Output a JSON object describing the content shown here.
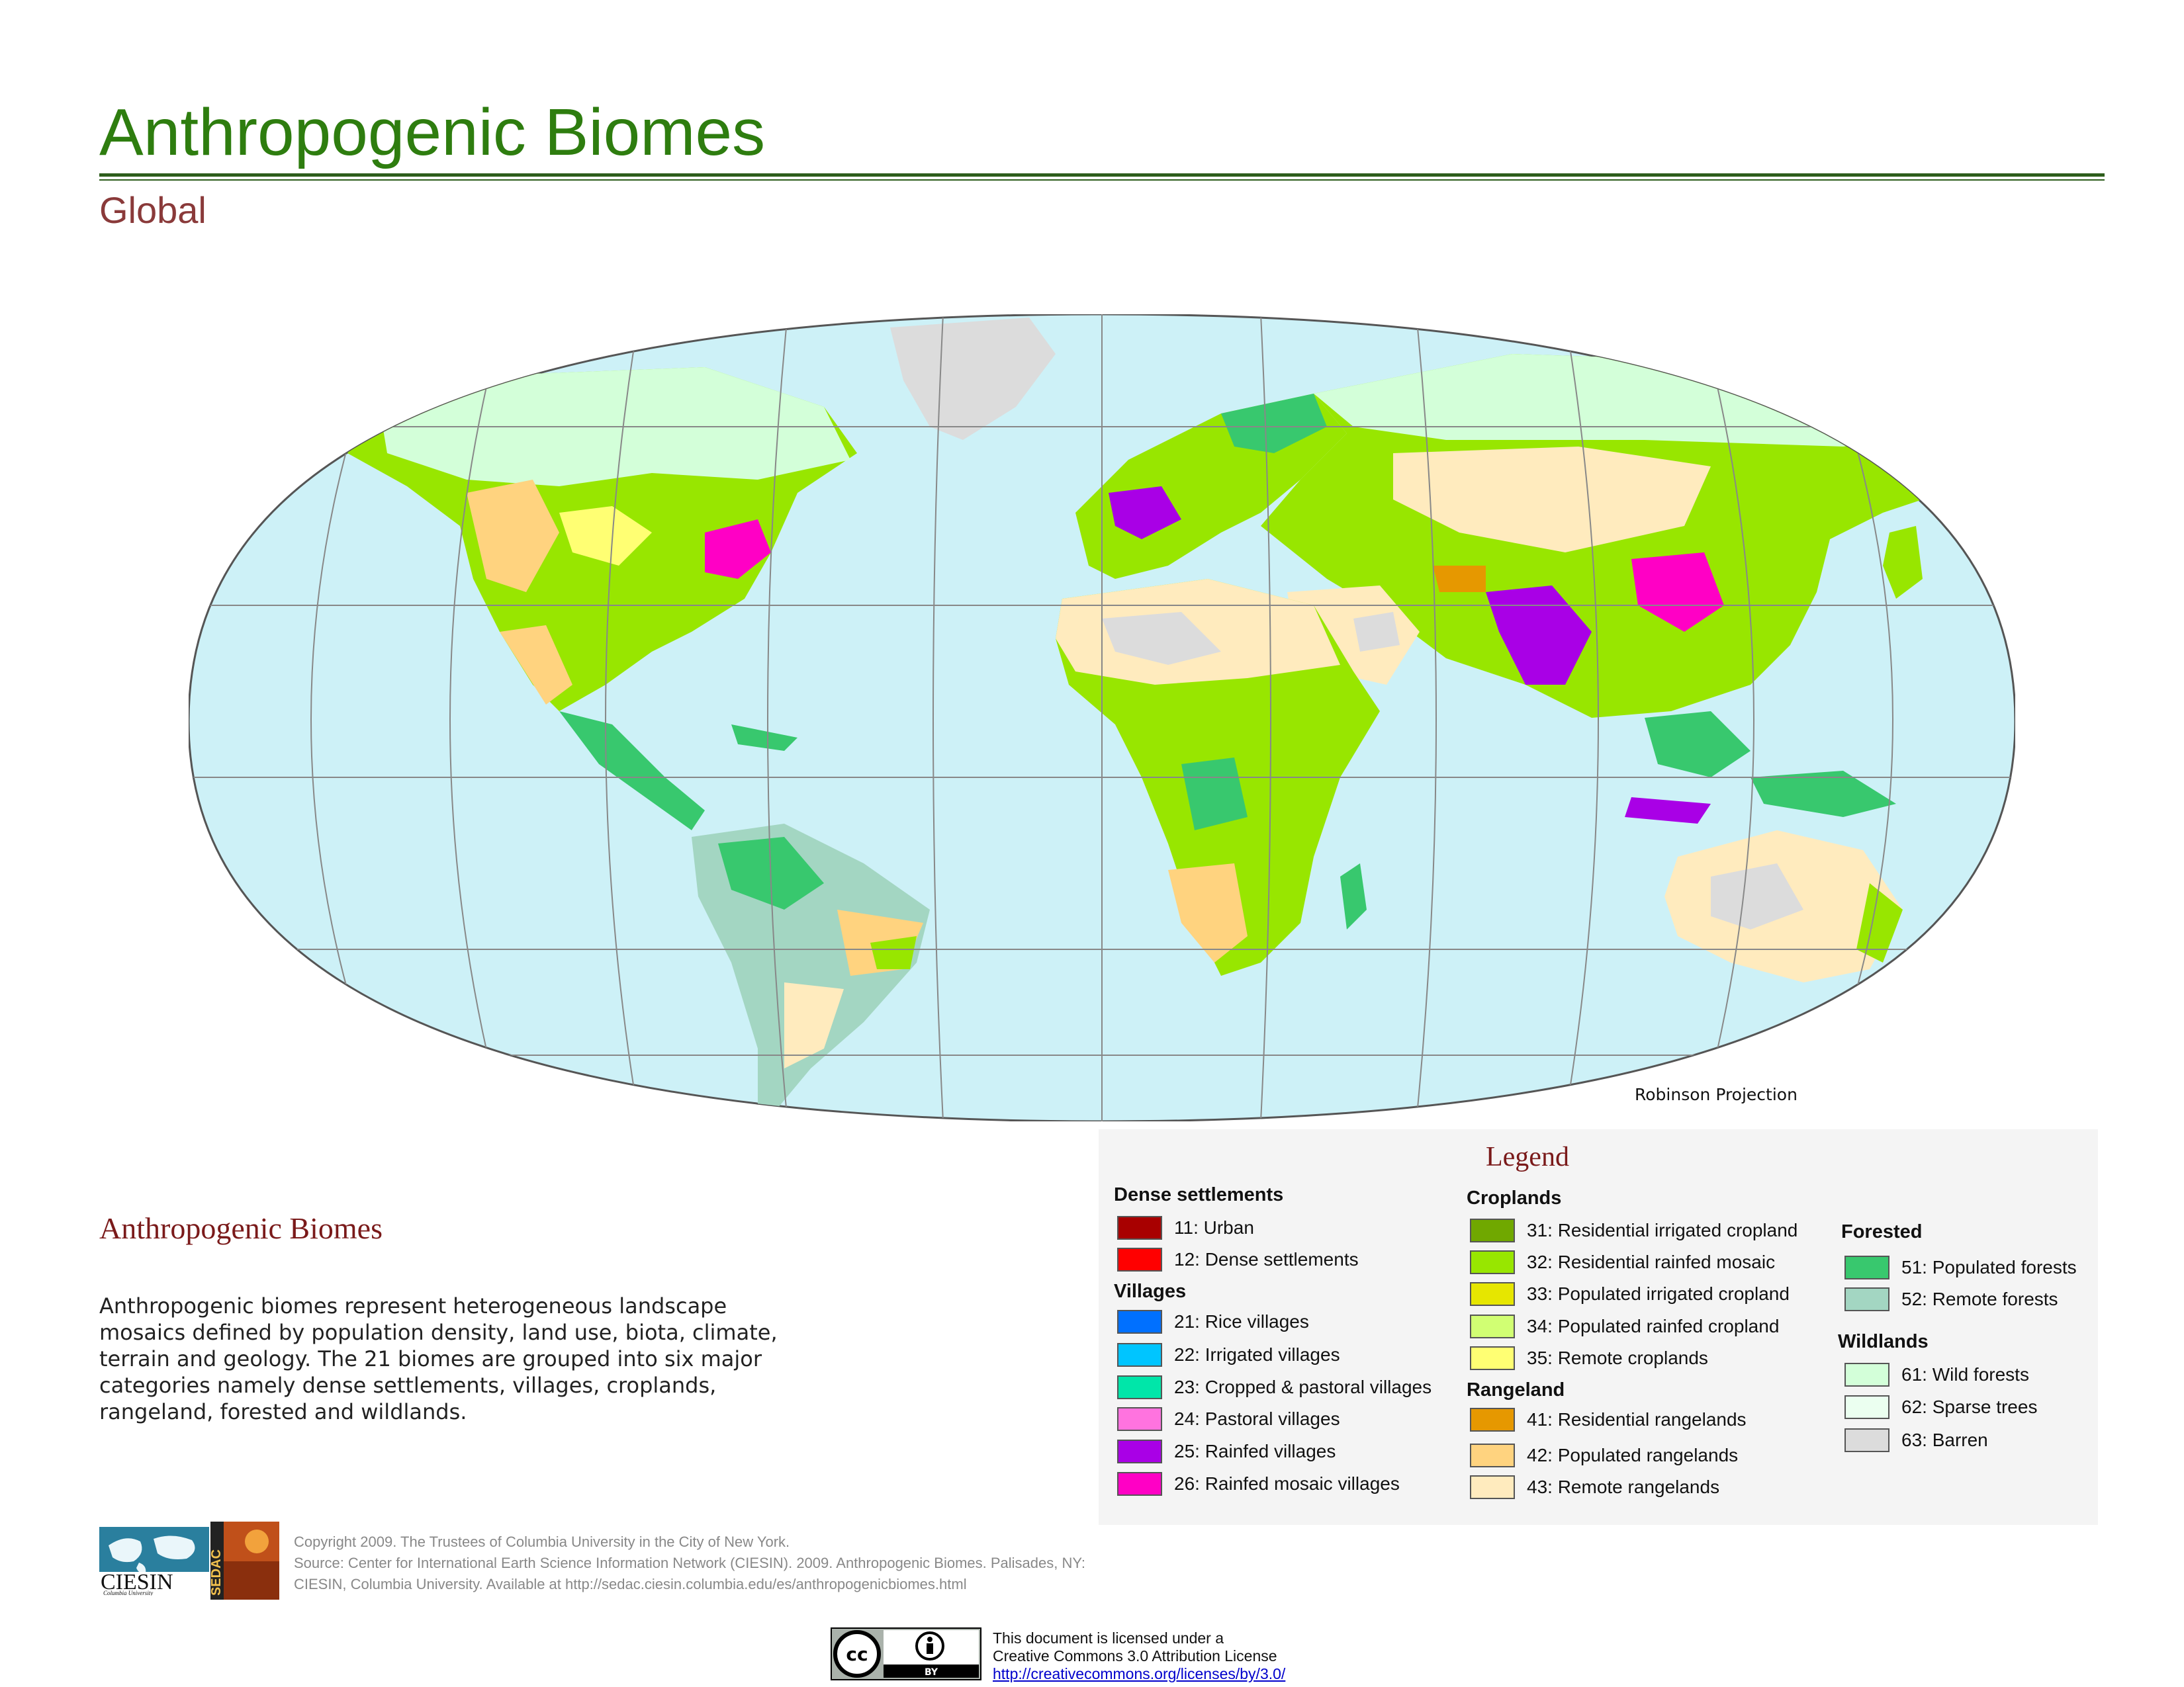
{
  "header": {
    "title": "Anthropogenic Biomes",
    "subtitle": "Global"
  },
  "map": {
    "projection_label": "Robinson Projection",
    "ocean_color": "#cdf1f7",
    "grid_color": "#888888",
    "antarctica_color": "#dcdcdc"
  },
  "description": {
    "heading": "Anthropogenic Biomes",
    "lines": [
      "Anthropogenic biomes represent heterogeneous landscape",
      "mosaics defined by population density, land use, biota, climate,",
      "terrain and geology. The 21 biomes are grouped into six major",
      "categories namely dense settlements, villages, croplands,",
      "rangeland, forested and wildlands."
    ]
  },
  "legend": {
    "title": "Legend",
    "groups": [
      {
        "name": "Dense settlements",
        "items": [
          {
            "label": "11: Urban",
            "color": "#a80000"
          },
          {
            "label": "12: Dense settlements",
            "color": "#ff0000"
          }
        ]
      },
      {
        "name": "Villages",
        "items": [
          {
            "label": "21: Rice villages",
            "color": "#0070ff"
          },
          {
            "label": "22: Irrigated villages",
            "color": "#00c5ff"
          },
          {
            "label": "23: Cropped & pastoral villages",
            "color": "#00e6a9"
          },
          {
            "label": "24: Pastoral villages",
            "color": "#ff73df"
          },
          {
            "label": "25: Rainfed villages",
            "color": "#a900e6"
          },
          {
            "label": "26: Rainfed mosaic villages",
            "color": "#ff00c5"
          }
        ]
      },
      {
        "name": "Croplands",
        "items": [
          {
            "label": "31: Residential irrigated cropland",
            "color": "#70a800"
          },
          {
            "label": "32: Residential rainfed mosaic",
            "color": "#98e600"
          },
          {
            "label": "33: Populated irrigated cropland",
            "color": "#e6e600"
          },
          {
            "label": "34: Populated rainfed cropland",
            "color": "#d1ff73"
          },
          {
            "label": "35: Remote croplands",
            "color": "#ffff73"
          }
        ]
      },
      {
        "name": "Rangeland",
        "items": [
          {
            "label": "41: Residential rangelands",
            "color": "#e69800"
          },
          {
            "label": "42: Populated rangelands",
            "color": "#ffd37f"
          },
          {
            "label": "43: Remote rangelands",
            "color": "#ffebbe"
          }
        ]
      },
      {
        "name": "Forested",
        "items": [
          {
            "label": "51: Populated forests",
            "color": "#38c86e"
          },
          {
            "label": "52: Remote forests",
            "color": "#a3d6c2"
          }
        ]
      },
      {
        "name": "Wildlands",
        "items": [
          {
            "label": "61: Wild forests",
            "color": "#d3ffd9"
          },
          {
            "label": "62: Sparse trees",
            "color": "#ebfff0"
          },
          {
            "label": "63: Barren",
            "color": "#dcdcdc"
          }
        ]
      }
    ]
  },
  "logos": {
    "ciesin": "CIESIN",
    "ciesin_sub": "Columbia University",
    "sedac": "SEDAC"
  },
  "credits": {
    "line1": "Copyright 2009. The Trustees of Columbia University in the City of New York.",
    "line2": "Source: Center for International Earth Science Information Network (CIESIN). 2009. Anthropogenic Biomes. Palisades, NY:",
    "line3": "CIESIN, Columbia University. Available at http://sedac.ciesin.columbia.edu/es/anthropogenicbiomes.html"
  },
  "license": {
    "badge_cc": "cc",
    "badge_by": "BY",
    "line1": "This document is licensed under a",
    "line2": "Creative Commons 3.0 Attribution License",
    "link": "http://creativecommons.org/licenses/by/3.0/"
  }
}
